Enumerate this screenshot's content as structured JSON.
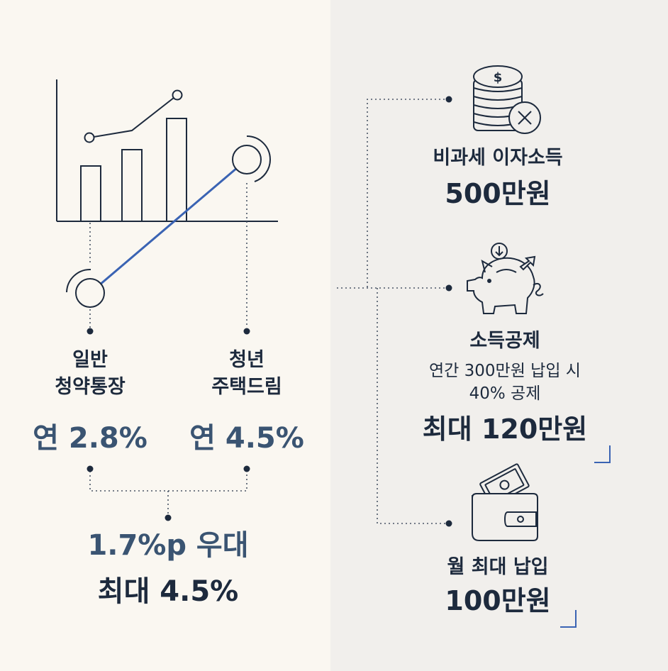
{
  "left": {
    "general": {
      "name_line1": "일반",
      "name_line2": "청약통장",
      "rate": "연 2.8%"
    },
    "youth": {
      "name_line1": "청년",
      "name_line2": "주택드림",
      "rate": "연 4.5%"
    },
    "summary": {
      "line1": "1.7%p 우대",
      "line2": "최대 4.5%"
    }
  },
  "right": {
    "tax_free": {
      "title": "비과세 이자소득",
      "amount": "500만원",
      "icon": "coins-x-icon"
    },
    "deduction": {
      "title": "소득공제",
      "desc_line1": "연간 300만원 납입 시",
      "desc_line2": "40% 공제",
      "amount": "최대 120만원",
      "icon": "piggy-bank-icon"
    },
    "monthly": {
      "title": "월 최대 납입",
      "amount": "100만원",
      "icon": "wallet-icon"
    }
  },
  "colors": {
    "accent": "#3a63b3",
    "navy": "#1d2a3d",
    "rate_blue": "#3a5472",
    "left_bg": "#faf7f1",
    "right_bg": "#f1efec"
  }
}
